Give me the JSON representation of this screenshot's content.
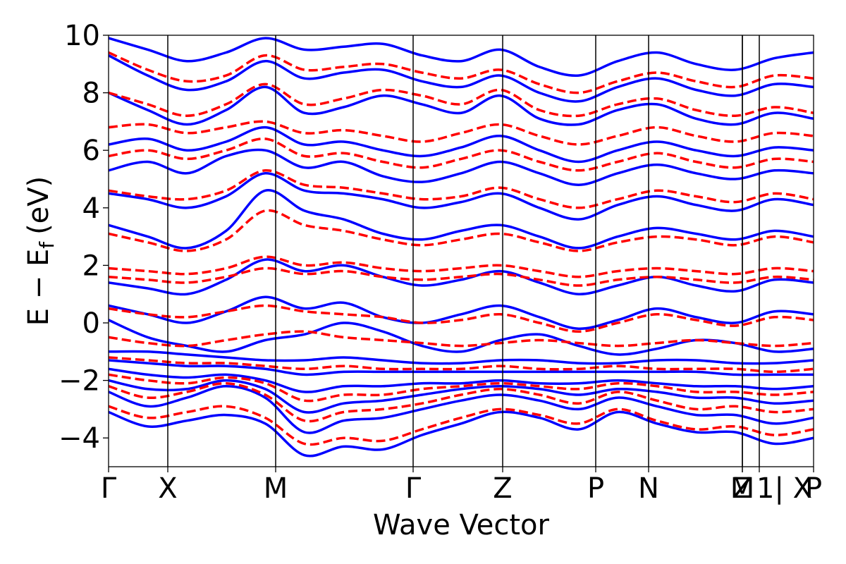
{
  "chart_data": {
    "type": "line",
    "title": "",
    "xlabel": "Wave Vector",
    "ylabel_main": "E − E",
    "ylabel_sub": "f",
    "ylabel_unit": "(eV)",
    "ylim": [
      -5,
      10
    ],
    "yticks": [
      -4,
      -2,
      0,
      2,
      4,
      6,
      8,
      10
    ],
    "ytick_labels": [
      "−4",
      "−2",
      "0",
      "2",
      "4",
      "6",
      "8",
      "10"
    ],
    "xlim": [
      0,
      1
    ],
    "kpoints": [
      {
        "label": "Γ",
        "x": 0.0
      },
      {
        "label": "X",
        "x": 0.084
      },
      {
        "label": "M",
        "x": 0.237
      },
      {
        "label": "Γ",
        "x": 0.432
      },
      {
        "label": "Z",
        "x": 0.559
      },
      {
        "label": "P",
        "x": 0.691
      },
      {
        "label": "N",
        "x": 0.766
      },
      {
        "label": "Z",
        "x": 0.899
      },
      {
        "label": "M",
        "x": 0.899
      },
      {
        "label": "1| X",
        "x": 0.923
      },
      {
        "label": "P",
        "x": 1.0
      }
    ],
    "series": [
      {
        "name": "solid bands",
        "color": "#0000ff",
        "style": "solid",
        "bands": [
          [
            -3.1,
            -3.6,
            -3.4,
            -3.2,
            -3.5,
            -4.6,
            -4.3,
            -4.4,
            -3.9,
            -3.5,
            -3.1,
            -3.3,
            -3.7,
            -3.1,
            -3.5,
            -3.8,
            -3.8,
            -4.2,
            -4.0
          ],
          [
            -2.4,
            -2.9,
            -2.6,
            -2.2,
            -2.6,
            -3.8,
            -3.4,
            -3.3,
            -3.0,
            -2.7,
            -2.5,
            -2.7,
            -3.0,
            -2.6,
            -2.9,
            -3.2,
            -3.2,
            -3.5,
            -3.3
          ],
          [
            -2.0,
            -2.3,
            -2.3,
            -2.0,
            -2.3,
            -3.1,
            -2.8,
            -2.7,
            -2.5,
            -2.3,
            -2.2,
            -2.3,
            -2.5,
            -2.3,
            -2.4,
            -2.6,
            -2.6,
            -2.8,
            -2.7
          ],
          [
            -1.6,
            -1.8,
            -1.9,
            -1.8,
            -2.0,
            -2.4,
            -2.2,
            -2.2,
            -2.1,
            -2.1,
            -2.0,
            -2.1,
            -2.1,
            -2.0,
            -2.1,
            -2.2,
            -2.2,
            -2.3,
            -2.2
          ],
          [
            -1.3,
            -1.4,
            -1.5,
            -1.5,
            -1.6,
            -1.8,
            -1.7,
            -1.7,
            -1.7,
            -1.7,
            -1.7,
            -1.7,
            -1.7,
            -1.7,
            -1.7,
            -1.7,
            -1.8,
            -1.8,
            -1.8
          ],
          [
            -1.0,
            -1.0,
            -1.1,
            -1.2,
            -1.3,
            -1.3,
            -1.2,
            -1.3,
            -1.4,
            -1.4,
            -1.3,
            -1.3,
            -1.4,
            -1.4,
            -1.3,
            -1.3,
            -1.4,
            -1.4,
            -1.3
          ],
          [
            0.1,
            -0.5,
            -0.8,
            -1.0,
            -0.6,
            -0.4,
            0.0,
            -0.3,
            -0.8,
            -1.0,
            -0.6,
            -0.4,
            -0.8,
            -1.1,
            -0.9,
            -0.6,
            -0.7,
            -1.0,
            -0.9
          ],
          [
            0.6,
            0.3,
            0.0,
            0.4,
            0.9,
            0.5,
            0.7,
            0.2,
            0.0,
            0.3,
            0.6,
            0.2,
            -0.2,
            0.1,
            0.5,
            0.2,
            0.0,
            0.4,
            0.3
          ],
          [
            1.4,
            1.2,
            1.0,
            1.5,
            2.2,
            1.8,
            2.0,
            1.6,
            1.3,
            1.5,
            1.8,
            1.4,
            1.0,
            1.3,
            1.6,
            1.3,
            1.1,
            1.5,
            1.4
          ],
          [
            3.4,
            3.0,
            2.6,
            3.2,
            4.6,
            3.9,
            3.6,
            3.1,
            2.9,
            3.2,
            3.4,
            3.0,
            2.6,
            3.0,
            3.3,
            3.1,
            2.9,
            3.2,
            3.0
          ],
          [
            4.5,
            4.3,
            4.0,
            4.4,
            5.2,
            4.6,
            4.5,
            4.3,
            4.0,
            4.2,
            4.5,
            4.0,
            3.6,
            4.1,
            4.4,
            4.1,
            3.9,
            4.3,
            4.1
          ],
          [
            5.3,
            5.6,
            5.2,
            5.8,
            6.0,
            5.4,
            5.6,
            5.1,
            4.9,
            5.2,
            5.6,
            5.2,
            4.8,
            5.2,
            5.5,
            5.2,
            5.0,
            5.3,
            5.2
          ],
          [
            6.2,
            6.4,
            6.0,
            6.3,
            6.8,
            6.2,
            6.3,
            6.0,
            5.8,
            6.1,
            6.5,
            6.0,
            5.6,
            6.0,
            6.3,
            6.0,
            5.8,
            6.1,
            6.0
          ],
          [
            8.0,
            7.4,
            6.9,
            7.4,
            8.2,
            7.3,
            7.5,
            7.9,
            7.6,
            7.3,
            7.9,
            7.1,
            6.9,
            7.4,
            7.6,
            7.1,
            6.9,
            7.3,
            7.1
          ],
          [
            9.3,
            8.6,
            8.1,
            8.4,
            9.1,
            8.5,
            8.7,
            8.8,
            8.4,
            8.2,
            8.6,
            8.0,
            7.7,
            8.2,
            8.5,
            8.1,
            7.9,
            8.3,
            8.2
          ],
          [
            9.9,
            9.5,
            9.1,
            9.4,
            9.9,
            9.5,
            9.6,
            9.7,
            9.3,
            9.1,
            9.5,
            8.9,
            8.6,
            9.1,
            9.4,
            9.0,
            8.8,
            9.2,
            9.4
          ]
        ]
      },
      {
        "name": "dashed bands",
        "color": "#ff0000",
        "style": "dashed",
        "bands": [
          [
            -2.9,
            -3.3,
            -3.1,
            -2.9,
            -3.3,
            -4.2,
            -4.0,
            -4.1,
            -3.7,
            -3.3,
            -3.0,
            -3.2,
            -3.5,
            -3.0,
            -3.4,
            -3.7,
            -3.6,
            -3.9,
            -3.7
          ],
          [
            -2.2,
            -2.6,
            -2.4,
            -2.1,
            -2.5,
            -3.4,
            -3.1,
            -3.0,
            -2.8,
            -2.5,
            -2.3,
            -2.5,
            -2.8,
            -2.4,
            -2.7,
            -3.0,
            -2.9,
            -3.1,
            -3.0
          ],
          [
            -1.8,
            -2.0,
            -2.1,
            -1.9,
            -2.1,
            -2.7,
            -2.5,
            -2.5,
            -2.3,
            -2.2,
            -2.1,
            -2.2,
            -2.3,
            -2.1,
            -2.2,
            -2.4,
            -2.4,
            -2.5,
            -2.4
          ],
          [
            -1.2,
            -1.3,
            -1.4,
            -1.4,
            -1.5,
            -1.6,
            -1.5,
            -1.6,
            -1.6,
            -1.6,
            -1.5,
            -1.6,
            -1.6,
            -1.5,
            -1.6,
            -1.6,
            -1.6,
            -1.7,
            -1.6
          ],
          [
            -0.5,
            -0.7,
            -0.8,
            -0.6,
            -0.4,
            -0.3,
            -0.5,
            -0.6,
            -0.7,
            -0.8,
            -0.7,
            -0.6,
            -0.7,
            -0.8,
            -0.7,
            -0.6,
            -0.7,
            -0.8,
            -0.7
          ],
          [
            0.5,
            0.3,
            0.2,
            0.4,
            0.6,
            0.4,
            0.3,
            0.2,
            0.0,
            0.1,
            0.3,
            0.0,
            -0.3,
            0.0,
            0.3,
            0.1,
            -0.1,
            0.2,
            0.1
          ],
          [
            1.6,
            1.5,
            1.4,
            1.6,
            1.9,
            1.7,
            1.8,
            1.6,
            1.5,
            1.6,
            1.7,
            1.5,
            1.3,
            1.5,
            1.6,
            1.5,
            1.4,
            1.6,
            1.5
          ],
          [
            1.9,
            1.8,
            1.7,
            1.9,
            2.3,
            2.0,
            2.1,
            1.9,
            1.8,
            1.9,
            2.0,
            1.8,
            1.6,
            1.8,
            1.9,
            1.8,
            1.7,
            1.9,
            1.8
          ],
          [
            3.1,
            2.8,
            2.5,
            2.9,
            3.9,
            3.4,
            3.2,
            2.9,
            2.7,
            2.9,
            3.1,
            2.8,
            2.5,
            2.8,
            3.0,
            2.9,
            2.7,
            3.0,
            2.8
          ],
          [
            4.6,
            4.4,
            4.3,
            4.6,
            5.3,
            4.8,
            4.7,
            4.5,
            4.3,
            4.4,
            4.7,
            4.3,
            4.0,
            4.3,
            4.6,
            4.4,
            4.2,
            4.5,
            4.3
          ],
          [
            5.8,
            6.0,
            5.7,
            6.0,
            6.4,
            5.8,
            5.9,
            5.6,
            5.4,
            5.7,
            6.0,
            5.6,
            5.3,
            5.6,
            5.9,
            5.6,
            5.4,
            5.7,
            5.6
          ],
          [
            6.8,
            6.9,
            6.6,
            6.8,
            7.0,
            6.6,
            6.7,
            6.5,
            6.3,
            6.6,
            6.9,
            6.5,
            6.2,
            6.5,
            6.8,
            6.5,
            6.3,
            6.6,
            6.5
          ],
          [
            8.0,
            7.6,
            7.2,
            7.6,
            8.3,
            7.6,
            7.8,
            8.1,
            7.9,
            7.6,
            8.1,
            7.4,
            7.2,
            7.6,
            7.8,
            7.4,
            7.2,
            7.5,
            7.3
          ],
          [
            9.4,
            8.8,
            8.4,
            8.6,
            9.3,
            8.8,
            8.9,
            9.0,
            8.7,
            8.5,
            8.8,
            8.3,
            8.0,
            8.4,
            8.7,
            8.4,
            8.2,
            8.6,
            8.5
          ]
        ]
      }
    ]
  }
}
